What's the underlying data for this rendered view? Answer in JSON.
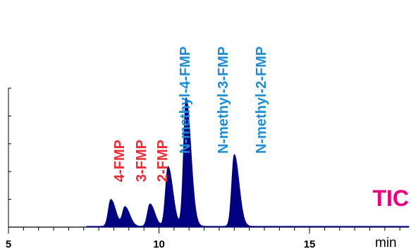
{
  "chart_data": {
    "type": "line",
    "trace_label": "TIC",
    "x_unit": "min",
    "xlim": [
      5,
      18.3
    ],
    "ylim": [
      0,
      100
    ],
    "x_tick_labels": [
      "5",
      "10",
      "15"
    ],
    "x_major_ticks": [
      5,
      10,
      15
    ],
    "series_color": "#000080",
    "peaks": [
      {
        "label": "4-FMP",
        "x": 8.4,
        "height": 18,
        "color": "#ee2a35"
      },
      {
        "label": "3-FMP",
        "x": 8.87,
        "height": 13,
        "color": "#ee2a35"
      },
      {
        "label": "2-FMP",
        "x": 9.7,
        "height": 15,
        "color": "#ee2a35"
      },
      {
        "label": "N-methyl-4-FMP",
        "x": 10.3,
        "height": 40,
        "color": "#1f8dd6"
      },
      {
        "label": "N-methyl-3-FMP",
        "x": 10.9,
        "height": 86,
        "color": "#1f8dd6"
      },
      {
        "label": "N-methyl-2-FMP",
        "x": 12.5,
        "height": 48,
        "color": "#1f8dd6"
      }
    ],
    "trace_color": "#e6007e",
    "grid": false,
    "legend": "none"
  }
}
